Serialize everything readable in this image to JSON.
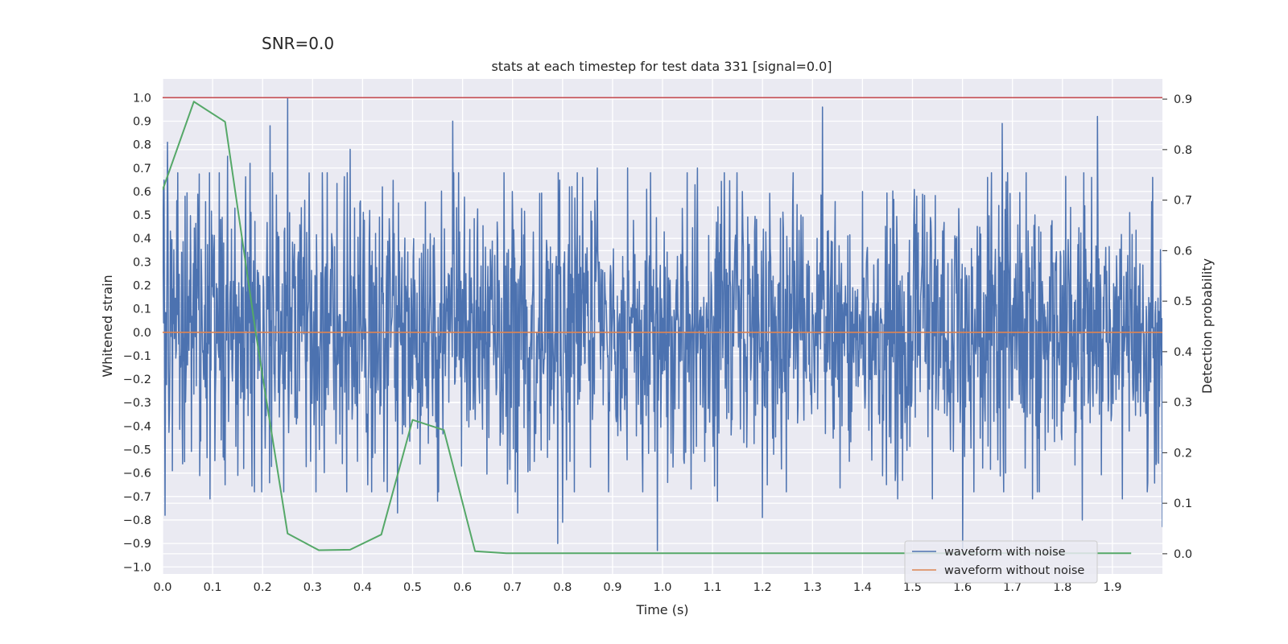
{
  "suptitle": "SNR=0.0",
  "chart_data": {
    "type": "line",
    "title": "stats at each timestep for test data 331 [signal=0.0]",
    "xlabel": "Time (s)",
    "ylabel": "Whitened strain",
    "y2label": "Detection probability",
    "xlim": [
      0.0,
      2.0
    ],
    "ylim": [
      -1.03,
      1.08
    ],
    "y2lim": [
      -0.04,
      0.94
    ],
    "xticks": [
      "0.0",
      "0.1",
      "0.2",
      "0.3",
      "0.4",
      "0.5",
      "0.6",
      "0.7",
      "0.8",
      "0.9",
      "1.0",
      "1.1",
      "1.2",
      "1.3",
      "1.4",
      "1.5",
      "1.6",
      "1.7",
      "1.8",
      "1.9"
    ],
    "yticks": [
      "1.0",
      "0.9",
      "0.8",
      "0.7",
      "0.6",
      "0.5",
      "0.4",
      "0.3",
      "0.2",
      "0.1",
      "0.0",
      "−0.1",
      "−0.2",
      "−0.3",
      "−0.4",
      "−0.5",
      "−0.6",
      "−0.7",
      "−0.8",
      "−0.9",
      "−1.0"
    ],
    "y2ticks": [
      "0.9",
      "0.8",
      "0.7",
      "0.6",
      "0.5",
      "0.4",
      "0.3",
      "0.2",
      "0.1",
      "0.0"
    ],
    "grid": true,
    "legend_position": "lower-right",
    "series": [
      {
        "name": "waveform with noise",
        "axis": "left",
        "color": "#4c72b0",
        "style": "dense noise, approx. white noise with std 0.3 and 2048 samples; selected peaks listed",
        "n_samples": 2048,
        "std": 0.3,
        "seed": 331,
        "peaks": [
          [
            0.0,
            0.62
          ],
          [
            0.005,
            -0.78
          ],
          [
            0.01,
            0.81
          ],
          [
            0.02,
            -0.59
          ],
          [
            0.045,
            0.58
          ],
          [
            0.095,
            -0.71
          ],
          [
            0.125,
            -0.65
          ],
          [
            0.13,
            0.75
          ],
          [
            0.15,
            -0.61
          ],
          [
            0.175,
            0.72
          ],
          [
            0.215,
            0.88
          ],
          [
            0.25,
            1.0
          ],
          [
            0.36,
            -0.56
          ],
          [
            0.375,
            0.78
          ],
          [
            0.39,
            -0.55
          ],
          [
            0.395,
            0.55
          ],
          [
            0.41,
            -0.65
          ],
          [
            0.44,
            0.62
          ],
          [
            0.47,
            -0.77
          ],
          [
            0.55,
            -0.72
          ],
          [
            0.58,
            0.9
          ],
          [
            0.7,
            0.6
          ],
          [
            0.71,
            -0.77
          ],
          [
            0.79,
            -0.9
          ],
          [
            0.8,
            -0.81
          ],
          [
            0.84,
            0.66
          ],
          [
            0.87,
            0.7
          ],
          [
            0.93,
            0.7
          ],
          [
            0.96,
            -0.68
          ],
          [
            0.99,
            -0.93
          ],
          [
            1.01,
            -0.64
          ],
          [
            1.07,
            0.7
          ],
          [
            1.11,
            -0.72
          ],
          [
            1.16,
            0.6
          ],
          [
            1.2,
            -0.79
          ],
          [
            1.32,
            0.96
          ],
          [
            1.4,
            0.6
          ],
          [
            1.47,
            -0.71
          ],
          [
            1.54,
            -0.71
          ],
          [
            1.6,
            -0.92
          ],
          [
            1.65,
            0.66
          ],
          [
            1.68,
            0.89
          ],
          [
            1.74,
            -0.71
          ],
          [
            1.84,
            -0.8
          ],
          [
            1.87,
            0.92
          ],
          [
            1.92,
            -0.71
          ],
          [
            1.98,
            0.66
          ],
          [
            2.0,
            -0.83
          ]
        ]
      },
      {
        "name": "waveform without noise",
        "axis": "left",
        "color": "#dd8452",
        "x": [
          0.0,
          2.0
        ],
        "y": [
          0.0,
          0.0
        ]
      },
      {
        "name": "",
        "axis": "right",
        "color": "#55a868",
        "x": [
          0.0,
          0.0625,
          0.125,
          0.1875,
          0.25,
          0.3125,
          0.375,
          0.4375,
          0.5,
          0.5625,
          0.625,
          0.6875,
          0.75,
          0.8125,
          0.875,
          0.9375,
          1.0,
          1.0625,
          1.125,
          1.1875,
          1.25,
          1.3125,
          1.375,
          1.4375,
          1.5,
          1.5625,
          1.625,
          1.6875,
          1.75,
          1.8125,
          1.875,
          1.9375
        ],
        "y": [
          0.72,
          0.895,
          0.855,
          0.43,
          0.04,
          0.007,
          0.008,
          0.038,
          0.265,
          0.245,
          0.005,
          0.001,
          0.001,
          0.001,
          0.001,
          0.001,
          0.001,
          0.001,
          0.001,
          0.001,
          0.001,
          0.001,
          0.001,
          0.001,
          0.001,
          0.001,
          0.001,
          0.001,
          0.001,
          0.001,
          0.001,
          0.001
        ]
      },
      {
        "name": "",
        "axis": "left",
        "color": "#c44e52",
        "x": [
          0.0,
          2.0
        ],
        "y": [
          1.0,
          1.0
        ]
      }
    ]
  }
}
